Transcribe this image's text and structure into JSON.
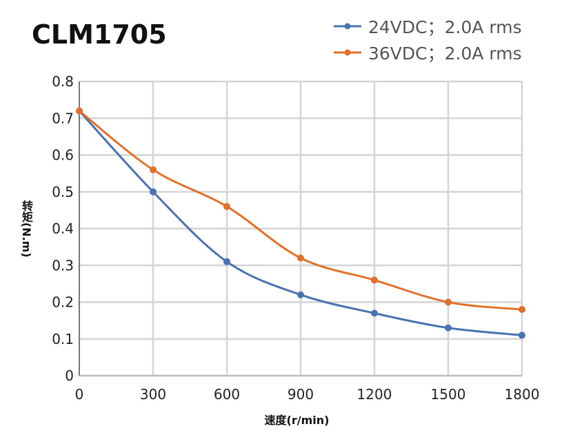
{
  "chart_data": {
    "type": "line",
    "title": "CLM1705",
    "xlabel": "速度(r/min)",
    "ylabel": "转矩(N.m)",
    "x": [
      0,
      300,
      600,
      900,
      1200,
      1500,
      1800
    ],
    "xticks": [
      "0",
      "300",
      "600",
      "900",
      "1200",
      "1500",
      "1800"
    ],
    "yticks": [
      "0",
      "0.1",
      "0.2",
      "0.3",
      "0.4",
      "0.5",
      "0.6",
      "0.7",
      "0.8"
    ],
    "xlim": [
      0,
      1800
    ],
    "ylim": [
      0,
      0.8
    ],
    "grid": true,
    "legend_position": "top-right",
    "series": [
      {
        "name": "24VDC；2.0A rms",
        "color": "#4a72b0",
        "values": [
          0.72,
          0.5,
          0.31,
          0.22,
          0.17,
          0.13,
          0.11
        ]
      },
      {
        "name": "36VDC；2.0A rms",
        "color": "#e0702a",
        "values": [
          0.72,
          0.56,
          0.46,
          0.32,
          0.26,
          0.2,
          0.18
        ]
      }
    ]
  }
}
